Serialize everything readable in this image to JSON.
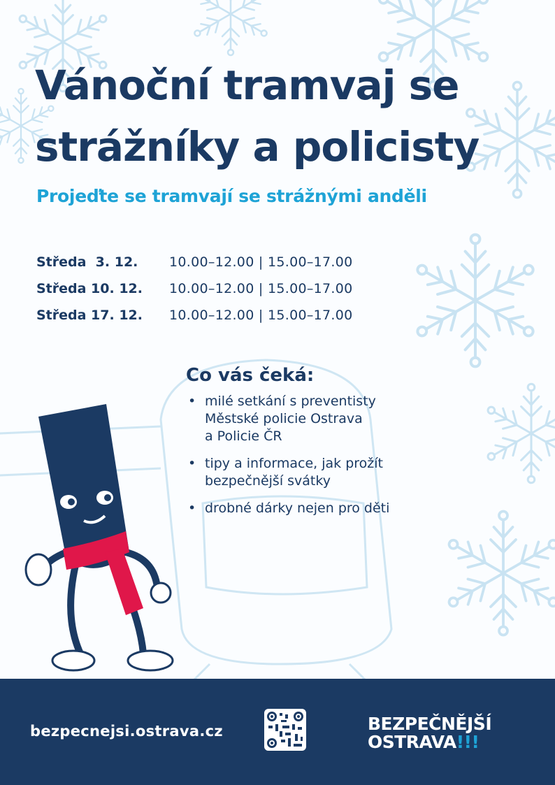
{
  "title_lines": [
    "Vánoční tramvaj se",
    "strážníky a policisty"
  ],
  "subtitle": "Projeďte se tramvají se strážnými anděli",
  "schedule": [
    {
      "day": "Středa  3. 12.",
      "times": "10.00–12.00 | 15.00–17.00"
    },
    {
      "day": "Středa 10. 12.",
      "times": "10.00–12.00 | 15.00–17.00"
    },
    {
      "day": "Středa 17. 12.",
      "times": "10.00–12.00 | 15.00–17.00"
    }
  ],
  "offer": {
    "heading": "Co vás čeká:",
    "items": [
      "milé setkání s preventisty\nMěstské policie Ostrava\na Policie ČR",
      "tipy a informace, jak prožít\nbezpečnější svátky",
      "drobné dárky nejen pro děti"
    ]
  },
  "footer": {
    "url": "bezpecnejsi.ostrava.cz",
    "qr_icon": "qr-code",
    "logo_line1": "BEZPEČNĚJŠÍ",
    "logo_line2": "OSTRAVA",
    "logo_exclaim": "!!!"
  },
  "colors": {
    "navy": "#1b3a63",
    "cyan": "#1ea3d6",
    "scarf": "#e0174a"
  }
}
